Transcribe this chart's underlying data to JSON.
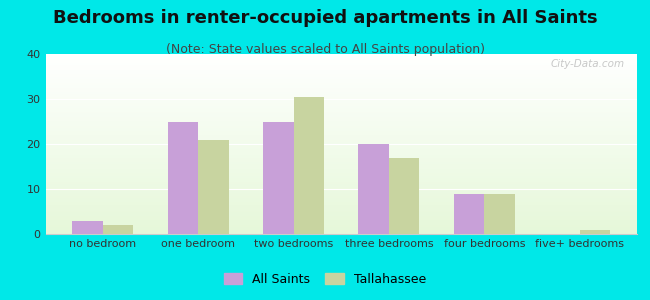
{
  "title": "Bedrooms in renter-occupied apartments in All Saints",
  "subtitle": "(Note: State values scaled to All Saints population)",
  "categories": [
    "no bedroom",
    "one bedroom",
    "two bedrooms",
    "three bedrooms",
    "four bedrooms",
    "five+ bedrooms"
  ],
  "all_saints_values": [
    3,
    25,
    25,
    20,
    9,
    0
  ],
  "tallahassee_values": [
    2,
    21,
    30.5,
    17,
    9,
    1
  ],
  "bar_color_all_saints": "#c8a0d8",
  "bar_color_tallahassee": "#c8d4a0",
  "background_outer": "#00e8e8",
  "ylim": [
    0,
    40
  ],
  "yticks": [
    0,
    10,
    20,
    30,
    40
  ],
  "bar_width": 0.32,
  "legend_all_saints": "All Saints",
  "legend_tallahassee": "Tallahassee",
  "title_fontsize": 13,
  "subtitle_fontsize": 9,
  "axis_fontsize": 8,
  "legend_fontsize": 9,
  "watermark_text": "City-Data.com"
}
